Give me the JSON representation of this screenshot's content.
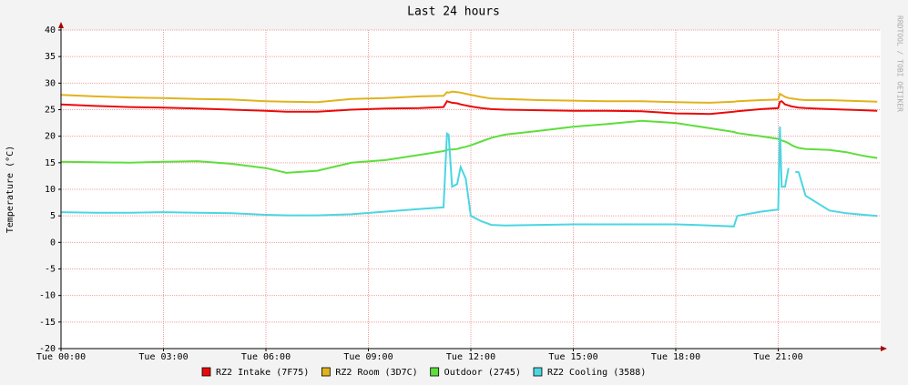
{
  "chart_data": {
    "type": "line",
    "title": "Last 24 hours",
    "y_label": "Temperature (°C)",
    "watermark": "RRDTOOL / TOBI OETIKER",
    "x": [
      0,
      1,
      2,
      3,
      4,
      5,
      6,
      6.6,
      7.5,
      8.5,
      9.5,
      10.5,
      11.2,
      11.3,
      11.35,
      11.45,
      11.6,
      11.7,
      11.85,
      12,
      12.3,
      12.6,
      13,
      14,
      15,
      16,
      17,
      18,
      19,
      19.7,
      19.8,
      20.5,
      21,
      21.05,
      21.1,
      21.2,
      21.3,
      21.4,
      21.5,
      21.6,
      21.8,
      22.5,
      23,
      23.5,
      23.9
    ],
    "xlim": [
      0,
      24
    ],
    "xticks": [
      {
        "value": 0,
        "label": "Tue 00:00"
      },
      {
        "value": 3,
        "label": "Tue 03:00"
      },
      {
        "value": 6,
        "label": "Tue 06:00"
      },
      {
        "value": 9,
        "label": "Tue 09:00"
      },
      {
        "value": 12,
        "label": "Tue 12:00"
      },
      {
        "value": 15,
        "label": "Tue 15:00"
      },
      {
        "value": 18,
        "label": "Tue 18:00"
      },
      {
        "value": 21,
        "label": "Tue 21:00"
      }
    ],
    "ylim": [
      -20,
      40
    ],
    "yticks": [
      -20,
      -15,
      -10,
      -5,
      0,
      5,
      10,
      15,
      20,
      25,
      30,
      35,
      40
    ],
    "grid": true,
    "series": [
      {
        "name": "RZ2 Intake (7F75)",
        "color": "#ea0a0a",
        "values": [
          26,
          25.7,
          25.5,
          25.4,
          25.2,
          25,
          24.8,
          24.6,
          24.6,
          25,
          25.2,
          25.3,
          25.5,
          26.6,
          26.5,
          26.3,
          26.2,
          26,
          25.8,
          25.6,
          25.3,
          25.1,
          25,
          24.9,
          24.8,
          24.8,
          24.7,
          24.3,
          24.2,
          24.6,
          24.7,
          25.1,
          25.3,
          26.5,
          26.6,
          26,
          25.8,
          25.6,
          25.5,
          25.4,
          25.3,
          25.1,
          25,
          24.9,
          24.8
        ]
      },
      {
        "name": "RZ2 Room (3D7C)",
        "color": "#e0b31c",
        "values": [
          27.8,
          27.5,
          27.3,
          27.2,
          27,
          26.9,
          26.6,
          26.5,
          26.4,
          27,
          27.2,
          27.5,
          27.6,
          28.3,
          28.2,
          28.4,
          28.3,
          28.2,
          28,
          27.8,
          27.4,
          27.1,
          27,
          26.8,
          26.7,
          26.6,
          26.6,
          26.4,
          26.3,
          26.5,
          26.6,
          26.8,
          26.9,
          28,
          27.8,
          27.4,
          27.2,
          27.1,
          27,
          26.9,
          26.8,
          26.8,
          26.7,
          26.6,
          26.5
        ]
      },
      {
        "name": "Outdoor (2745)",
        "color": "#5ede3c",
        "values": [
          15.2,
          15.1,
          15,
          15.2,
          15.3,
          14.8,
          14,
          13.1,
          13.5,
          15,
          15.5,
          16.5,
          17.2,
          17.4,
          17.5,
          17.5,
          17.6,
          17.8,
          18,
          18.3,
          19,
          19.7,
          20.3,
          21,
          21.8,
          22.3,
          22.9,
          22.5,
          21.5,
          20.8,
          20.6,
          20,
          19.5,
          19.2,
          19.2,
          19,
          18.7,
          18.3,
          18,
          17.8,
          17.6,
          17.4,
          17,
          16.3,
          15.9
        ]
      },
      {
        "name": "RZ2 Cooling (3588)",
        "color": "#4bd6e2",
        "values": [
          5.7,
          5.6,
          5.6,
          5.7,
          5.6,
          5.5,
          5.2,
          5.1,
          5.1,
          5.3,
          5.8,
          6.3,
          6.6,
          20.5,
          20.3,
          10.5,
          11,
          14.2,
          12,
          5,
          4,
          3.3,
          3.2,
          3.3,
          3.4,
          3.4,
          3.4,
          3.4,
          3.2,
          3,
          5,
          5.8,
          6.2,
          21.8,
          10.5,
          10.5,
          14,
          null,
          13.3,
          13.2,
          8.8,
          6,
          5.5,
          5.2,
          5
        ]
      }
    ]
  }
}
